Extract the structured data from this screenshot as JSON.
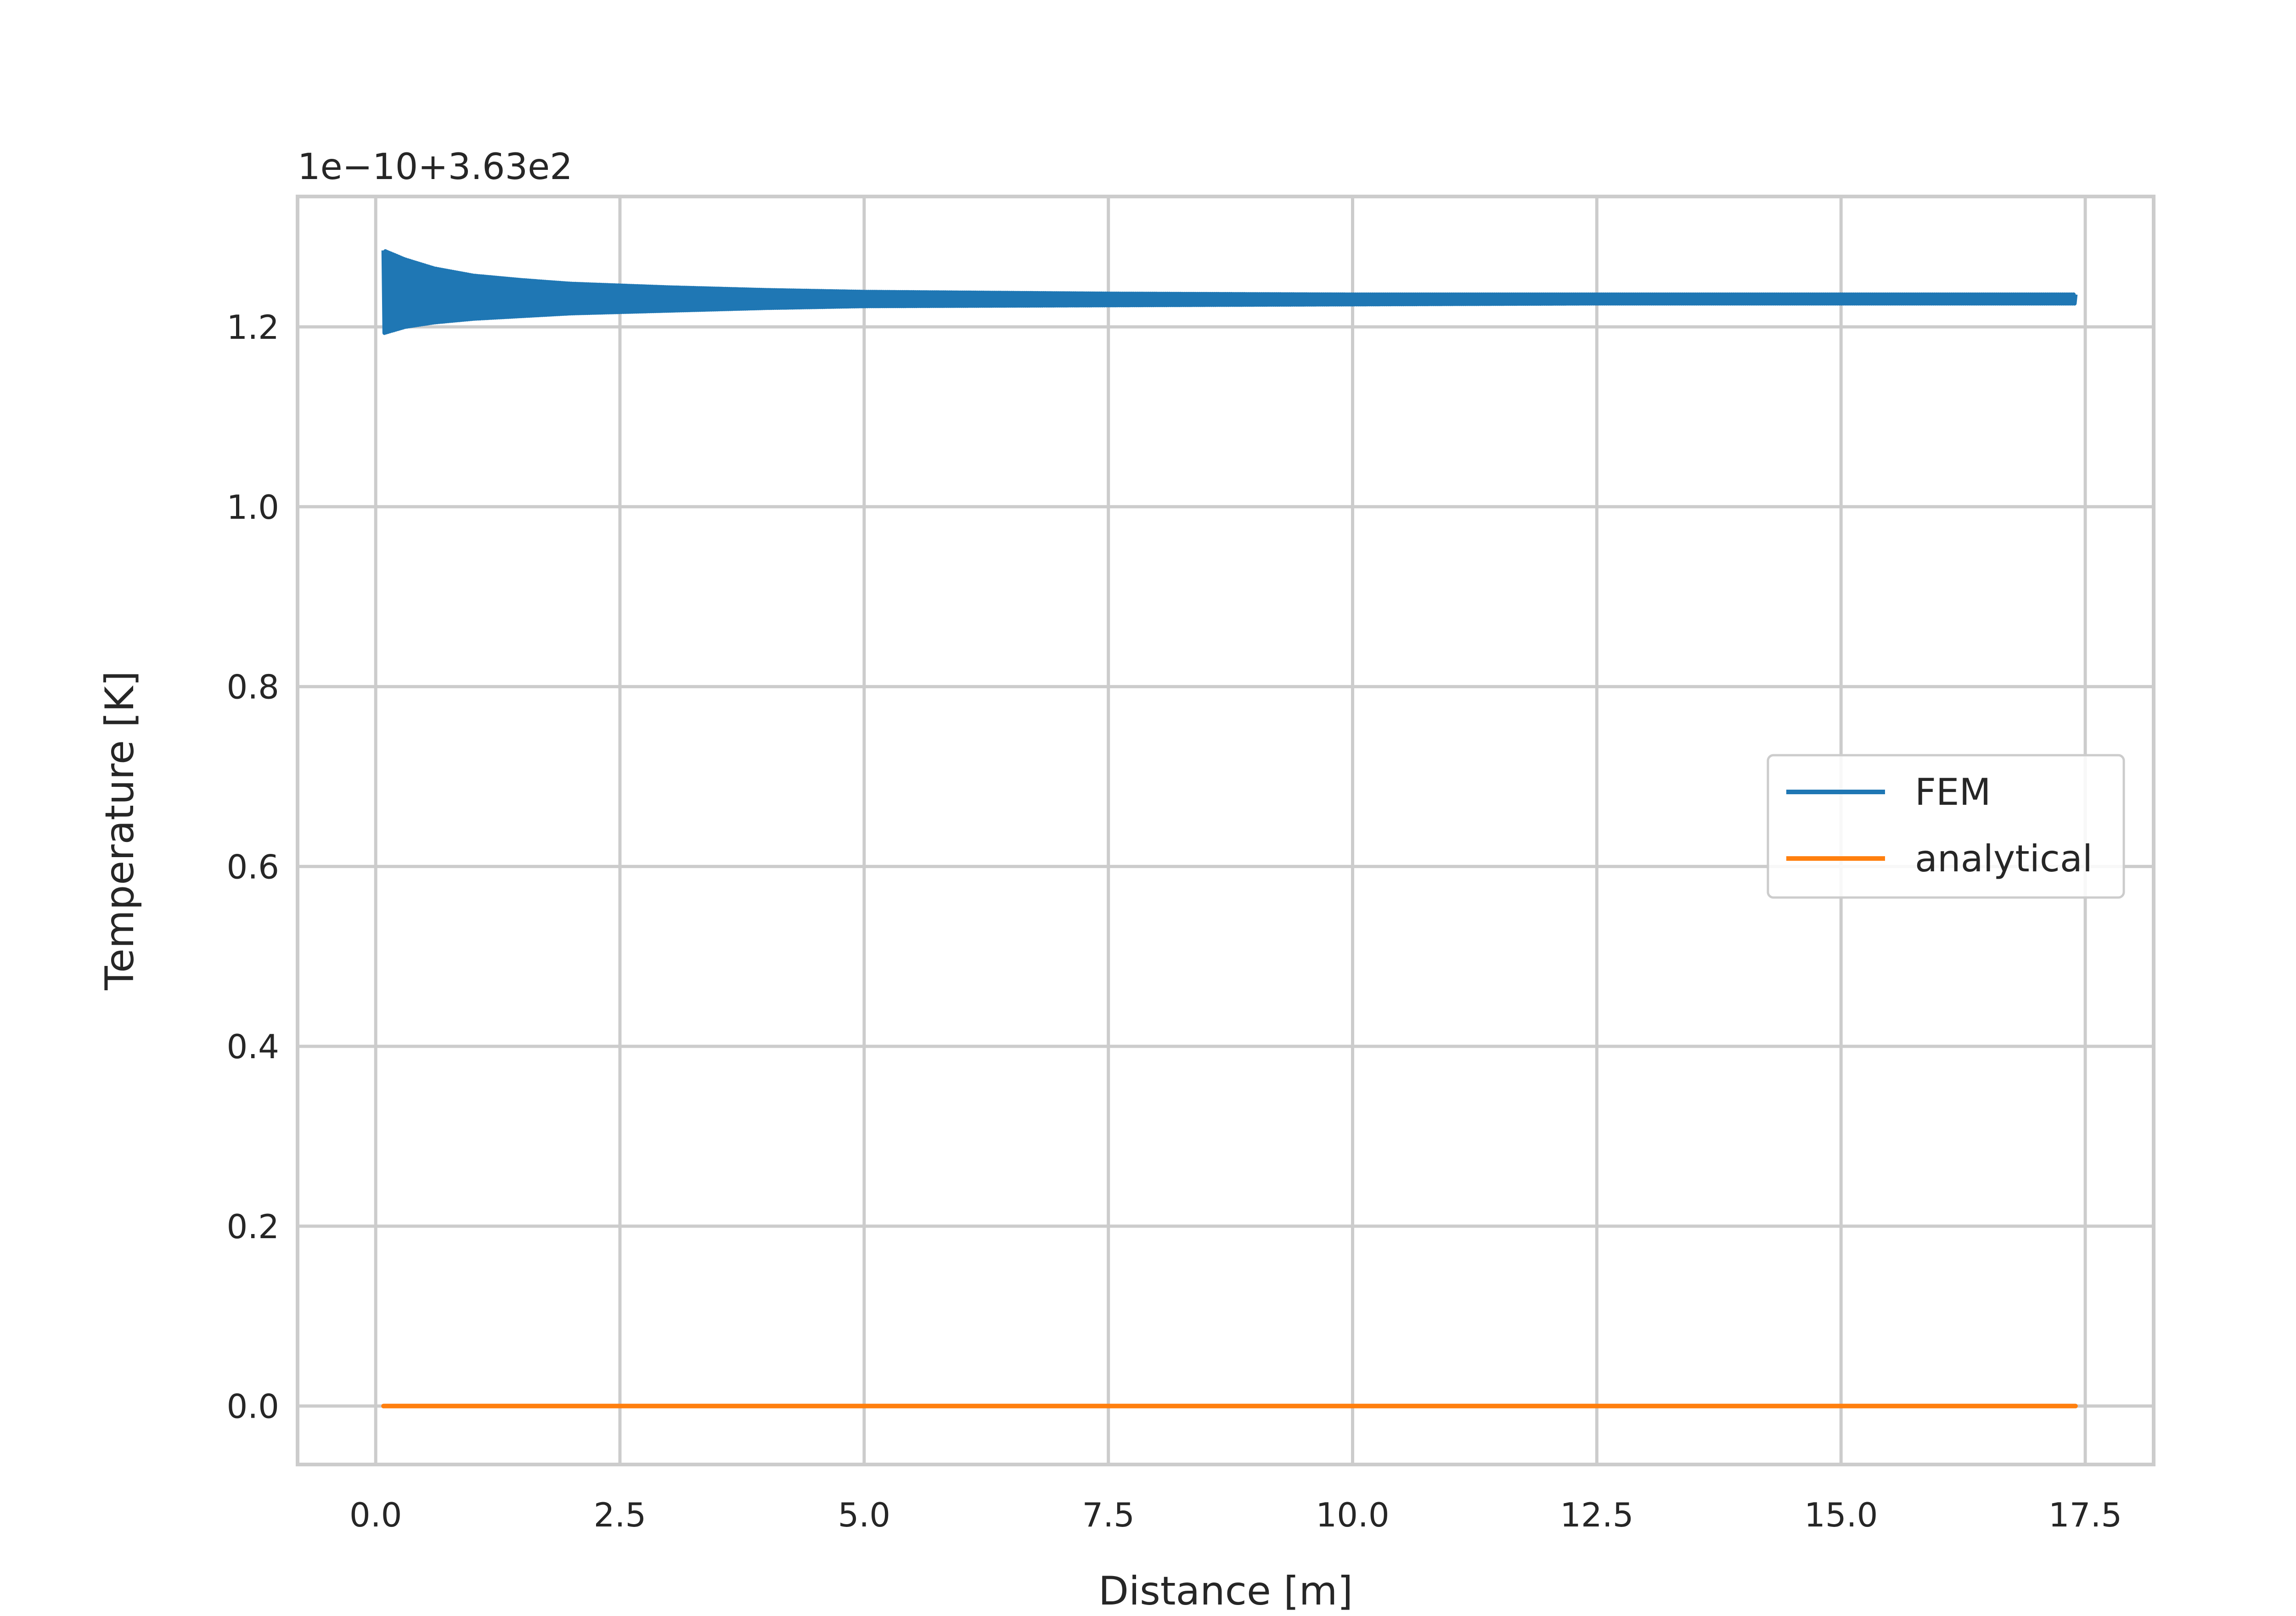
{
  "chart_data": {
    "type": "line",
    "title": "",
    "offset_label": "1e−10+3.63e2",
    "xlabel": "Distance [m]",
    "ylabel": "Temperature [K]",
    "xlim": [
      -0.8,
      18.2
    ],
    "ylim": [
      -0.065,
      1.345
    ],
    "x_ticks": [
      0.0,
      2.5,
      5.0,
      7.5,
      10.0,
      12.5,
      15.0,
      17.5
    ],
    "x_tick_labels": [
      "0.0",
      "2.5",
      "5.0",
      "7.5",
      "10.0",
      "12.5",
      "15.0",
      "17.5"
    ],
    "y_ticks": [
      0.0,
      0.2,
      0.4,
      0.6,
      0.8,
      1.0,
      1.2
    ],
    "y_tick_labels": [
      "0.0",
      "0.2",
      "0.4",
      "0.6",
      "0.8",
      "1.0",
      "1.2"
    ],
    "grid": true,
    "legend_position": "center-right",
    "series": [
      {
        "name": "FEM",
        "color": "#1f77b4",
        "x_range": [
          0.08,
          17.4
        ],
        "mean_value": 1.23,
        "envelope": {
          "x": [
            0.08,
            0.3,
            0.6,
            1.0,
            1.5,
            2.0,
            3.0,
            4.0,
            5.0,
            7.5,
            10.0,
            12.5,
            15.0,
            17.4
          ],
          "upper": [
            1.285,
            1.275,
            1.265,
            1.257,
            1.252,
            1.248,
            1.244,
            1.241,
            1.239,
            1.237,
            1.236,
            1.236,
            1.236,
            1.236
          ],
          "lower": [
            1.193,
            1.2,
            1.205,
            1.209,
            1.212,
            1.215,
            1.218,
            1.221,
            1.223,
            1.224,
            1.225,
            1.226,
            1.226,
            1.226
          ]
        }
      },
      {
        "name": "analytical",
        "color": "#ff7f0e",
        "x": [
          0.08,
          17.4
        ],
        "y": [
          0.0,
          0.0
        ]
      }
    ]
  }
}
